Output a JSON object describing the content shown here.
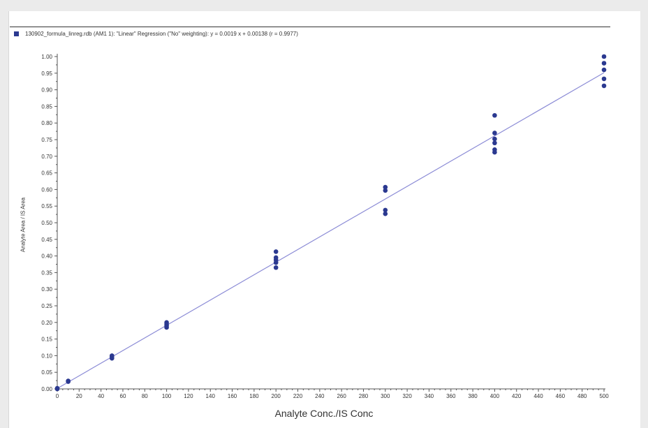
{
  "legend": {
    "text": "130902_formula_linreg.rdb (AM1 1): \"Linear\" Regression (\"No\" weighting): y = 0.0019 x + 0.00138 (r = 0.9977)",
    "swatch_color": "#2b3990"
  },
  "colors": {
    "points": "#2b3990",
    "fit_line": "#8c8cd6",
    "axes": "#555555"
  },
  "chart_data": {
    "type": "scatter",
    "title": "",
    "xlabel": "Analyte Conc./IS Conc",
    "ylabel": "Analyte Area / IS Area",
    "xlim": [
      0,
      500
    ],
    "ylim": [
      0,
      1.0
    ],
    "grid": false,
    "legend_position": "top-left",
    "x_ticks": [
      0,
      20,
      40,
      60,
      80,
      100,
      120,
      140,
      160,
      180,
      200,
      220,
      240,
      260,
      280,
      300,
      320,
      340,
      360,
      380,
      400,
      420,
      440,
      460,
      480,
      500
    ],
    "y_ticks": [
      "0.00",
      "0.05",
      "0.10",
      "0.15",
      "0.20",
      "0.25",
      "0.30",
      "0.35",
      "0.40",
      "0.45",
      "0.50",
      "0.55",
      "0.60",
      "0.65",
      "0.70",
      "0.75",
      "0.80",
      "0.85",
      "0.90",
      "0.95",
      "1.00"
    ],
    "regression": {
      "slope": 0.0019,
      "intercept": 0.00138,
      "r": 0.9977,
      "x_range": [
        0,
        500
      ]
    },
    "series": [
      {
        "points": [
          [
            0,
            0.0
          ],
          [
            0,
            0.002
          ],
          [
            10,
            0.022
          ],
          [
            10,
            0.024
          ],
          [
            50,
            0.092
          ],
          [
            50,
            0.097
          ],
          [
            50,
            0.1
          ],
          [
            100,
            0.185
          ],
          [
            100,
            0.19
          ],
          [
            100,
            0.195
          ],
          [
            100,
            0.2
          ],
          [
            200,
            0.365
          ],
          [
            200,
            0.38
          ],
          [
            200,
            0.388
          ],
          [
            200,
            0.395
          ],
          [
            200,
            0.413
          ],
          [
            300,
            0.527
          ],
          [
            300,
            0.538
          ],
          [
            300,
            0.597
          ],
          [
            300,
            0.607
          ],
          [
            400,
            0.712
          ],
          [
            400,
            0.72
          ],
          [
            400,
            0.74
          ],
          [
            400,
            0.752
          ],
          [
            400,
            0.77
          ],
          [
            400,
            0.823
          ],
          [
            500,
            0.912
          ],
          [
            500,
            0.933
          ],
          [
            500,
            0.96
          ],
          [
            500,
            0.98
          ],
          [
            500,
            1.0
          ]
        ]
      }
    ]
  }
}
